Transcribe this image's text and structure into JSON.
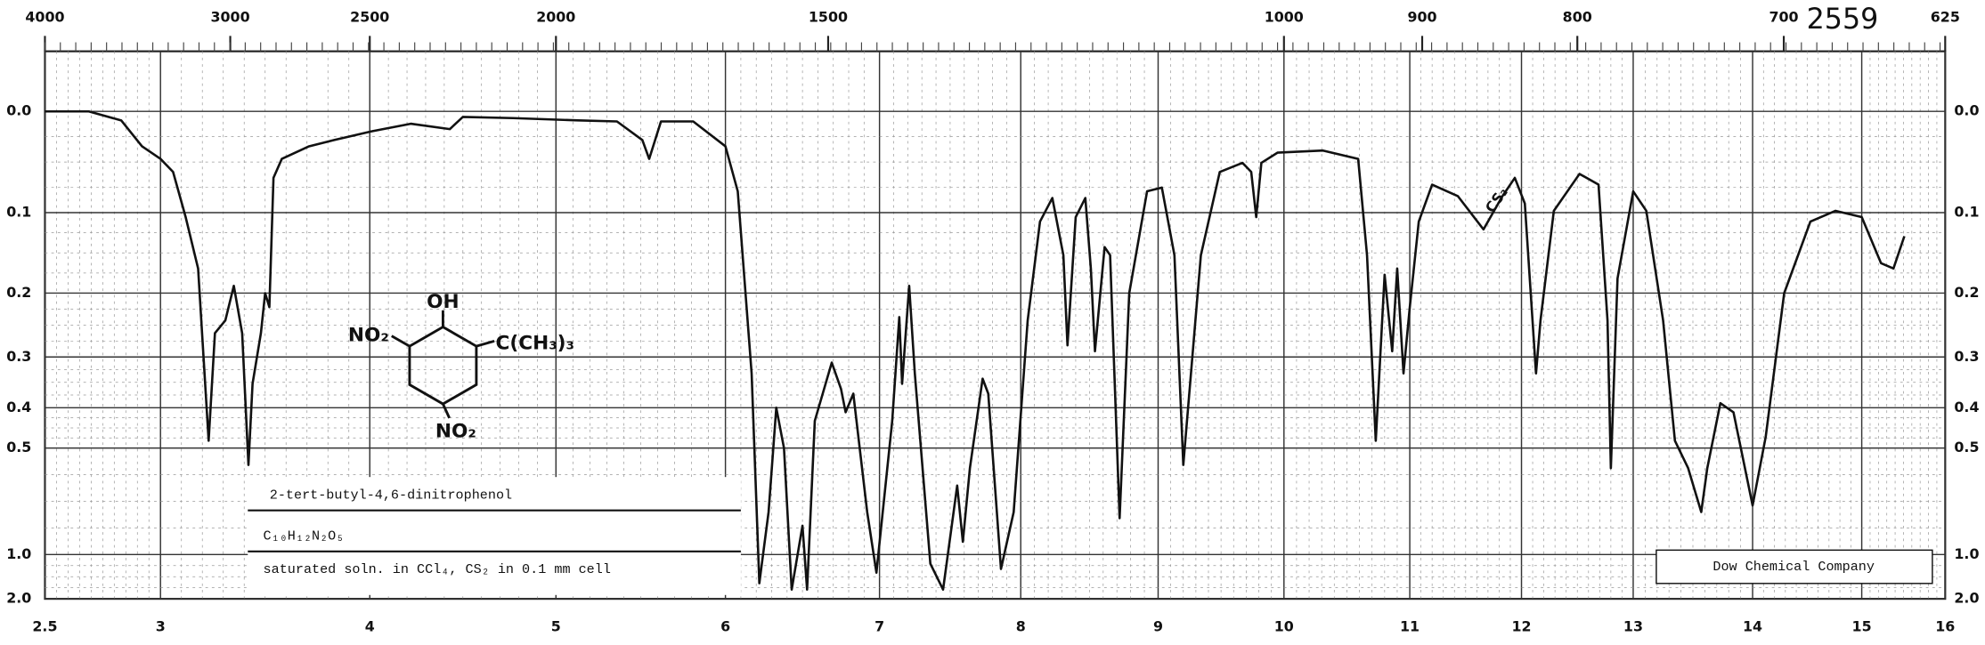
{
  "chart_data": {
    "type": "line",
    "catalog_number": "2559",
    "compound": "2-tert-butyl-4,6-dinitrophenol",
    "formula": "C₁₀H₁₂N₂O₅",
    "conditions": "saturated soln. in CCl₄, CS₂  in 0.1 mm cell",
    "source": "Dow Chemical Company",
    "annotation": "CS₂",
    "structure": {
      "top": "OH",
      "left": "NO₂",
      "right": "C(CH₃)₃",
      "bottom": "NO₂"
    },
    "yscale": "absorbance",
    "grid": true,
    "xlim": [
      2.5,
      16
    ],
    "xticks": [
      {
        "value": 2.5,
        "label": "2.5"
      },
      3,
      4,
      5,
      6,
      7,
      8,
      9,
      10,
      11,
      12,
      13,
      14,
      15,
      16
    ],
    "x2ticks": [
      4000,
      3000,
      2500,
      2000,
      1500,
      1000,
      900,
      800,
      700,
      625
    ],
    "ylim": [
      -0.05,
      2
    ],
    "yticks": [
      {
        "value": 0,
        "label": "0.0"
      },
      0.1,
      0.2,
      0.3,
      0.4,
      0.5,
      {
        "value": 1,
        "label": "1.0"
      },
      {
        "value": 2,
        "label": "2.0"
      }
    ],
    "series": [
      {
        "color": "#111111",
        "x": [
          2.5,
          2.69,
          2.83,
          2.92,
          3.0,
          3.06,
          3.12,
          3.18,
          3.23,
          3.26,
          3.31,
          3.35,
          3.39,
          3.42,
          3.44,
          3.48,
          3.5,
          3.52,
          3.54,
          3.58,
          3.71,
          3.83,
          4.01,
          4.22,
          4.43,
          4.5,
          4.77,
          5.13,
          5.36,
          5.51,
          5.55,
          5.62,
          5.81,
          6.0,
          6.08,
          6.17,
          6.22,
          6.28,
          6.33,
          6.38,
          6.43,
          6.5,
          6.53,
          6.58,
          6.69,
          6.75,
          6.78,
          6.83,
          6.92,
          6.98,
          7.09,
          7.14,
          7.16,
          7.21,
          7.25,
          7.36,
          7.45,
          7.55,
          7.59,
          7.64,
          7.73,
          7.77,
          7.86,
          7.95,
          8.05,
          8.14,
          8.23,
          8.31,
          8.34,
          8.4,
          8.47,
          8.51,
          8.54,
          8.61,
          8.65,
          8.72,
          8.79,
          8.92,
          9.03,
          9.13,
          9.2,
          9.34,
          9.49,
          9.67,
          9.74,
          9.78,
          9.82,
          9.95,
          10.31,
          10.59,
          10.66,
          10.73,
          10.8,
          10.86,
          10.9,
          10.95,
          11.0,
          11.08,
          11.2,
          11.43,
          11.66,
          11.83,
          11.94,
          12.03,
          12.13,
          12.17,
          12.29,
          12.52,
          12.69,
          12.77,
          12.8,
          12.86,
          13.0,
          13.11,
          13.25,
          13.35,
          13.46,
          13.57,
          13.62,
          13.73,
          13.84,
          14.0,
          14.12,
          14.29,
          14.53,
          14.76,
          15.0,
          15.23,
          15.38,
          15.51
        ],
        "values": [
          0,
          0,
          0.008,
          0.032,
          0.044,
          0.057,
          0.105,
          0.167,
          0.48,
          0.26,
          0.24,
          0.19,
          0.26,
          0.55,
          0.35,
          0.26,
          0.2,
          0.22,
          0.063,
          0.044,
          0.032,
          0.026,
          0.018,
          0.011,
          0.016,
          0.005,
          0.006,
          0.008,
          0.009,
          0.026,
          0.044,
          0.009,
          0.009,
          0.032,
          0.077,
          0.33,
          1.38,
          0.73,
          0.4,
          0.5,
          1.54,
          0.8,
          1.54,
          0.43,
          0.31,
          0.36,
          0.41,
          0.37,
          0.73,
          1.2,
          0.43,
          0.235,
          0.35,
          0.19,
          0.33,
          1.09,
          1.54,
          0.62,
          0.9,
          0.56,
          0.34,
          0.37,
          1.15,
          0.73,
          0.24,
          0.11,
          0.084,
          0.15,
          0.28,
          0.105,
          0.084,
          0.167,
          0.29,
          0.14,
          0.15,
          0.76,
          0.2,
          0.077,
          0.073,
          0.15,
          0.55,
          0.15,
          0.057,
          0.048,
          0.057,
          0.105,
          0.048,
          0.038,
          0.036,
          0.044,
          0.15,
          0.48,
          0.175,
          0.29,
          0.167,
          0.33,
          0.22,
          0.11,
          0.07,
          0.082,
          0.119,
          0.082,
          0.063,
          0.09,
          0.33,
          0.24,
          0.098,
          0.059,
          0.07,
          0.24,
          0.56,
          0.18,
          0.077,
          0.098,
          0.24,
          0.48,
          0.56,
          0.73,
          0.56,
          0.39,
          0.41,
          0.7,
          0.47,
          0.2,
          0.11,
          0.098,
          0.105,
          0.16,
          0.167,
          0.127
        ]
      }
    ]
  }
}
